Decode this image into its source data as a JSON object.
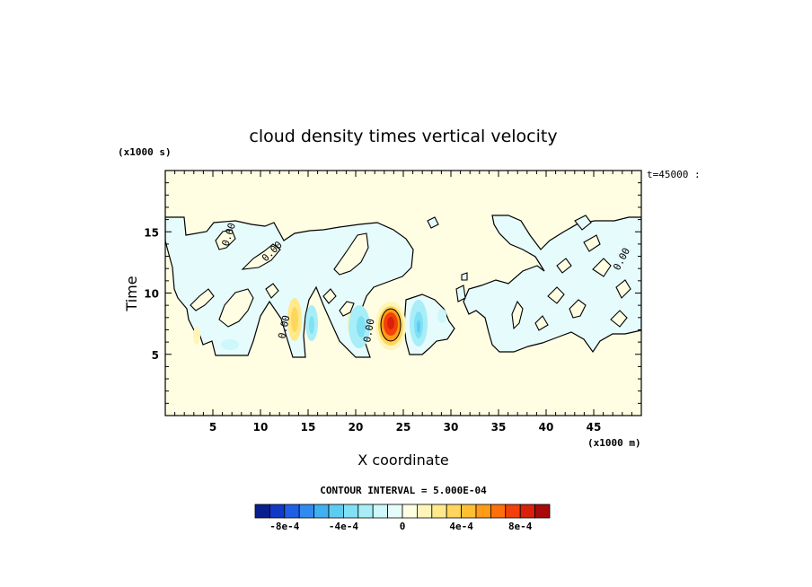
{
  "chart_data": {
    "type": "heatmap",
    "title": "cloud density times vertical velocity",
    "xlabel": "X coordinate",
    "ylabel": "Time",
    "x_units": "(x1000 m)",
    "y_units": "(x1000 s)",
    "time_label": "t=45000 :",
    "xlim": [
      0,
      50
    ],
    "ylim": [
      0,
      20
    ],
    "x_ticks": [
      5,
      10,
      15,
      20,
      25,
      30,
      35,
      40,
      45
    ],
    "y_ticks": [
      5,
      10,
      15
    ],
    "contour_interval_text": "CONTOUR INTERVAL = 5.000E-04",
    "contour_labels": [
      "0.00",
      "0.00",
      "0.00",
      "0.00",
      "0.00"
    ],
    "colorbar": {
      "levels": [
        -0.001,
        -0.0009,
        -0.0008,
        -0.0007,
        -0.0006,
        -0.0005,
        -0.0004,
        -0.0003,
        -0.0002,
        -0.0001,
        0,
        0.0001,
        0.0002,
        0.0003,
        0.0004,
        0.0005,
        0.0006,
        0.0007,
        0.0008,
        0.0009,
        0.001
      ],
      "colors": [
        "#0a1f8c",
        "#1238c8",
        "#1f5fe6",
        "#2f8bf0",
        "#3fb0f0",
        "#5ccdf2",
        "#80e0f4",
        "#a8eef8",
        "#cdf7fb",
        "#e6fbfc",
        "#fffde2",
        "#fff5b8",
        "#ffe98a",
        "#ffd65c",
        "#ffbf33",
        "#ff9b14",
        "#ff6e0a",
        "#f2400a",
        "#d9200a",
        "#a80a0a"
      ],
      "tick_values": [
        -0.0008,
        -0.0004,
        0,
        0.0004,
        0.0008
      ],
      "tick_labels": [
        "-8e-4",
        "-4e-4",
        "0",
        "4e-4",
        "8e-4"
      ]
    },
    "field_features": [
      {
        "kind": "cloud_band",
        "x_range": [
          0,
          50
        ],
        "time_range": [
          5,
          16
        ],
        "value": -0.0001
      },
      {
        "kind": "updraft_core",
        "x": 23.5,
        "time": 7.5,
        "value": 0.0009
      },
      {
        "kind": "weak_positive",
        "x": 13,
        "time": 7.5,
        "value": 0.0003
      },
      {
        "kind": "weak_positive",
        "x": 19,
        "time": 7.0,
        "value": 0.0002
      },
      {
        "kind": "weak_positive",
        "x": 3.5,
        "time": 6.0,
        "value": 0.0002
      },
      {
        "kind": "weak_negative",
        "x": 16,
        "time": 7.0,
        "value": -0.0004
      },
      {
        "kind": "weak_negative",
        "x": 21,
        "time": 7.0,
        "value": -0.0004
      },
      {
        "kind": "weak_negative",
        "x": 26.5,
        "time": 7.0,
        "value": -0.0004
      },
      {
        "kind": "weak_negative",
        "x": 7.0,
        "time": 6.0,
        "value": -0.0002
      }
    ]
  }
}
